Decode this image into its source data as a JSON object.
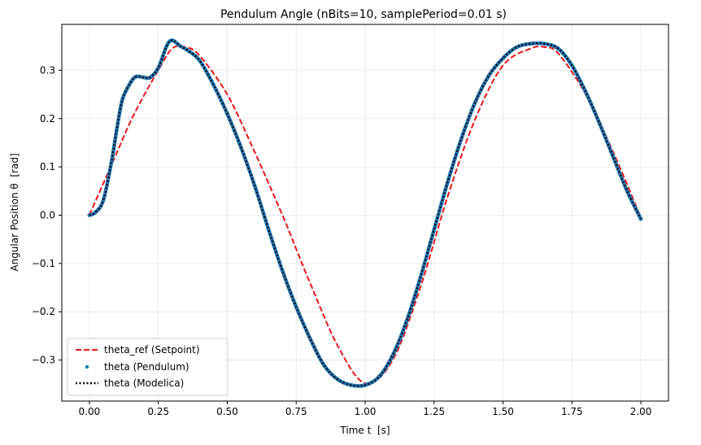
{
  "chart_data": {
    "type": "line",
    "title": "Pendulum Angle (nBits=10, samplePeriod=0.01 s)",
    "xlabel": "Time t  [s]",
    "ylabel": "Angular Position θ  [rad]",
    "xlim": [
      -0.1,
      2.1
    ],
    "ylim": [
      -0.385,
      0.395
    ],
    "grid": true,
    "legend_position": "lower-left",
    "x_ticks": [
      0.0,
      0.25,
      0.5,
      0.75,
      1.0,
      1.25,
      1.5,
      1.75,
      2.0
    ],
    "x_tick_labels": [
      "0.00",
      "0.25",
      "0.50",
      "0.75",
      "1.00",
      "1.25",
      "1.50",
      "1.75",
      "2.00"
    ],
    "y_ticks": [
      -0.3,
      -0.2,
      -0.1,
      0.0,
      0.1,
      0.2,
      0.3
    ],
    "y_tick_labels": [
      "−0.3",
      "−0.2",
      "−0.1",
      "0.0",
      "0.1",
      "0.2",
      "0.3"
    ],
    "series": [
      {
        "name": "theta_ref (Setpoint)",
        "style": "dashed",
        "color": "#e8161b",
        "x": [
          0.0,
          0.05,
          0.1,
          0.15,
          0.2,
          0.25,
          0.3,
          0.35,
          0.4,
          0.5,
          0.6,
          0.7,
          0.75,
          0.8,
          0.9,
          1.0,
          1.1,
          1.2,
          1.3,
          1.4,
          1.5,
          1.6,
          1.65,
          1.7,
          1.8,
          1.9,
          2.0
        ],
        "y": [
          0.0,
          0.065,
          0.13,
          0.195,
          0.25,
          0.3,
          0.345,
          0.348,
          0.33,
          0.25,
          0.13,
          -0.0,
          -0.07,
          -0.14,
          -0.27,
          -0.348,
          -0.3,
          -0.15,
          0.04,
          0.2,
          0.31,
          0.345,
          0.348,
          0.335,
          0.25,
          0.13,
          -0.005
        ]
      },
      {
        "name": "theta (Pendulum)",
        "style": "dots",
        "color": "#1f77b4",
        "x": [
          0.0,
          0.02,
          0.05,
          0.08,
          0.1,
          0.12,
          0.15,
          0.17,
          0.2,
          0.22,
          0.25,
          0.28,
          0.3,
          0.33,
          0.36,
          0.4,
          0.45,
          0.5,
          0.55,
          0.6,
          0.65,
          0.7,
          0.75,
          0.8,
          0.85,
          0.9,
          0.95,
          1.0,
          1.05,
          1.1,
          1.15,
          1.2,
          1.25,
          1.3,
          1.35,
          1.4,
          1.45,
          1.5,
          1.55,
          1.6,
          1.65,
          1.7,
          1.75,
          1.8,
          1.85,
          1.9,
          1.95,
          2.0
        ],
        "y": [
          0.0,
          0.005,
          0.03,
          0.11,
          0.18,
          0.24,
          0.275,
          0.287,
          0.285,
          0.285,
          0.305,
          0.35,
          0.362,
          0.35,
          0.34,
          0.32,
          0.27,
          0.21,
          0.14,
          0.06,
          -0.03,
          -0.115,
          -0.19,
          -0.255,
          -0.31,
          -0.34,
          -0.352,
          -0.352,
          -0.335,
          -0.29,
          -0.22,
          -0.13,
          -0.03,
          0.07,
          0.16,
          0.235,
          0.29,
          0.325,
          0.348,
          0.355,
          0.355,
          0.345,
          0.31,
          0.255,
          0.19,
          0.12,
          0.05,
          -0.008
        ]
      },
      {
        "name": "theta (Modelica)",
        "style": "dotted",
        "color": "#000000",
        "x": [
          0.0,
          0.02,
          0.05,
          0.08,
          0.1,
          0.12,
          0.15,
          0.17,
          0.2,
          0.22,
          0.25,
          0.28,
          0.3,
          0.33,
          0.36,
          0.4,
          0.45,
          0.5,
          0.55,
          0.6,
          0.65,
          0.7,
          0.75,
          0.8,
          0.85,
          0.9,
          0.95,
          1.0,
          1.05,
          1.1,
          1.15,
          1.2,
          1.25,
          1.3,
          1.35,
          1.4,
          1.45,
          1.5,
          1.55,
          1.6,
          1.65,
          1.7,
          1.75,
          1.8,
          1.85,
          1.9,
          1.95,
          2.0
        ],
        "y": [
          0.0,
          0.005,
          0.03,
          0.11,
          0.18,
          0.24,
          0.275,
          0.287,
          0.285,
          0.285,
          0.305,
          0.35,
          0.362,
          0.35,
          0.34,
          0.32,
          0.27,
          0.21,
          0.14,
          0.06,
          -0.03,
          -0.115,
          -0.19,
          -0.255,
          -0.31,
          -0.34,
          -0.352,
          -0.352,
          -0.335,
          -0.29,
          -0.22,
          -0.13,
          -0.03,
          0.07,
          0.16,
          0.235,
          0.29,
          0.325,
          0.348,
          0.355,
          0.355,
          0.345,
          0.31,
          0.255,
          0.19,
          0.12,
          0.05,
          -0.008
        ]
      }
    ]
  }
}
